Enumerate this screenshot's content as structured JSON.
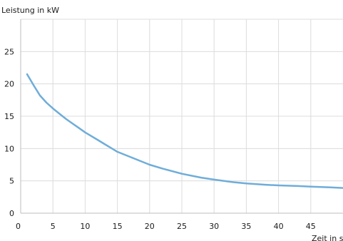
{
  "chart_data": {
    "type": "line",
    "ylabel": "Leistung in kW",
    "xlabel": "Zeit in s",
    "xlim": [
      0,
      50
    ],
    "ylim": [
      0,
      30
    ],
    "x_ticks": [
      0,
      5,
      10,
      15,
      20,
      25,
      30,
      35,
      40,
      45
    ],
    "y_ticks": [
      0,
      5,
      10,
      15,
      20,
      25
    ],
    "grid": true,
    "line_color": "#6fadd9",
    "series": [
      {
        "x": [
          1,
          2,
          3,
          4,
          5,
          6,
          7,
          8,
          9,
          10,
          11,
          12,
          13,
          14,
          15,
          17,
          20,
          22,
          25,
          28,
          30,
          33,
          35,
          38,
          40,
          43,
          45,
          48,
          50
        ],
        "values": [
          21.5,
          19.8,
          18.2,
          17.1,
          16.2,
          15.4,
          14.6,
          13.9,
          13.2,
          12.5,
          11.9,
          11.3,
          10.7,
          10.1,
          9.5,
          8.7,
          7.5,
          6.9,
          6.1,
          5.5,
          5.2,
          4.8,
          4.6,
          4.4,
          4.3,
          4.2,
          4.1,
          4.0,
          3.9
        ]
      }
    ]
  }
}
